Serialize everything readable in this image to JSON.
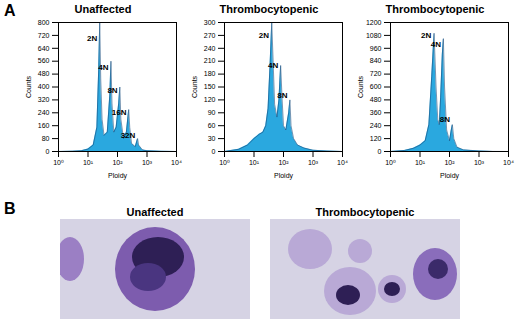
{
  "figure": {
    "panel_a_label": "A",
    "panel_b_label": "B",
    "panel_b_titles": [
      "Unaffected",
      "Thrombocytopenic"
    ]
  },
  "chart_data": [
    {
      "type": "area",
      "title": "Unaffected",
      "x_label": "Ploidy",
      "y_label": "Counts",
      "log": "x",
      "color": "#2aa8df",
      "x": [
        1,
        3,
        6,
        10,
        15,
        20,
        23,
        25,
        27,
        30,
        35,
        45,
        55,
        60,
        65,
        75,
        90,
        110,
        120,
        130,
        160,
        200,
        240,
        260,
        300,
        400,
        480,
        520,
        700,
        1000,
        3000,
        10000
      ],
      "values": [
        0,
        2,
        5,
        15,
        40,
        150,
        500,
        800,
        450,
        200,
        100,
        120,
        350,
        560,
        300,
        120,
        150,
        300,
        400,
        200,
        80,
        120,
        260,
        150,
        50,
        30,
        80,
        40,
        10,
        5,
        1,
        0
      ],
      "xlim": [
        1,
        10000
      ],
      "xticks": [
        {
          "value": 1,
          "label": "10⁰"
        },
        {
          "value": 10,
          "label": "10¹"
        },
        {
          "value": 100,
          "label": "10²"
        },
        {
          "value": 1000,
          "label": "10³"
        },
        {
          "value": 10000,
          "label": "10⁴"
        }
      ],
      "ylim": [
        0,
        800
      ],
      "yticks": [
        0,
        80,
        160,
        240,
        320,
        400,
        480,
        560,
        640,
        720,
        800
      ],
      "annotations": [
        {
          "text": "2N",
          "x": 24,
          "y": 700
        },
        {
          "text": "4N",
          "x": 58,
          "y": 520
        },
        {
          "text": "8N",
          "x": 118,
          "y": 380
        },
        {
          "text": "16N",
          "x": 235,
          "y": 240
        },
        {
          "text": "32N",
          "x": 470,
          "y": 100
        }
      ]
    },
    {
      "type": "area",
      "title": "Thrombocytopenic",
      "x_label": "Ploidy",
      "y_label": "Counts",
      "log": "x",
      "color": "#2aa8df",
      "x": [
        1,
        3,
        6,
        10,
        15,
        20,
        25,
        30,
        35,
        40,
        45,
        50,
        60,
        70,
        80,
        90,
        100,
        120,
        150,
        165,
        180,
        220,
        300,
        500,
        1000,
        3000,
        10000
      ],
      "values": [
        0,
        5,
        15,
        30,
        40,
        45,
        60,
        100,
        200,
        300,
        200,
        110,
        80,
        120,
        200,
        120,
        60,
        50,
        90,
        120,
        60,
        30,
        15,
        8,
        3,
        1,
        0
      ],
      "xlim": [
        1,
        10000
      ],
      "xticks": [
        {
          "value": 1,
          "label": "10⁰"
        },
        {
          "value": 10,
          "label": "10¹"
        },
        {
          "value": 100,
          "label": "10²"
        },
        {
          "value": 1000,
          "label": "10³"
        },
        {
          "value": 10000,
          "label": "10⁴"
        }
      ],
      "ylim": [
        0,
        300
      ],
      "yticks": [
        0,
        30,
        60,
        90,
        120,
        150,
        180,
        210,
        240,
        270,
        300
      ],
      "annotations": [
        {
          "text": "2N",
          "x": 38,
          "y": 270
        },
        {
          "text": "4N",
          "x": 78,
          "y": 200
        },
        {
          "text": "8N",
          "x": 160,
          "y": 130
        }
      ]
    },
    {
      "type": "area",
      "title": "Thrombocytopenic",
      "x_label": "Ploidy",
      "y_label": "Counts",
      "log": "x",
      "color": "#2aa8df",
      "x": [
        1,
        3,
        6,
        10,
        15,
        20,
        25,
        30,
        35,
        40,
        45,
        50,
        57,
        62,
        68,
        80,
        100,
        115,
        125,
        140,
        180,
        300,
        1000,
        3000,
        10000
      ],
      "values": [
        0,
        10,
        30,
        60,
        100,
        250,
        700,
        1100,
        600,
        300,
        250,
        500,
        900,
        1050,
        600,
        200,
        100,
        200,
        250,
        120,
        40,
        15,
        5,
        1,
        0
      ],
      "xlim": [
        1,
        10000
      ],
      "xticks": [
        {
          "value": 1,
          "label": "10⁰"
        },
        {
          "value": 10,
          "label": "10¹"
        },
        {
          "value": 100,
          "label": "10²"
        },
        {
          "value": 1000,
          "label": "10³"
        },
        {
          "value": 10000,
          "label": "10⁴"
        }
      ],
      "ylim": [
        0,
        1200
      ],
      "yticks": [
        0,
        120,
        240,
        360,
        480,
        600,
        720,
        840,
        960,
        1080,
        1200
      ],
      "annotations": [
        {
          "text": "2N",
          "x": 28,
          "y": 1080
        },
        {
          "text": "4N",
          "x": 60,
          "y": 1000
        },
        {
          "text": "8N",
          "x": 122,
          "y": 300
        }
      ]
    }
  ]
}
